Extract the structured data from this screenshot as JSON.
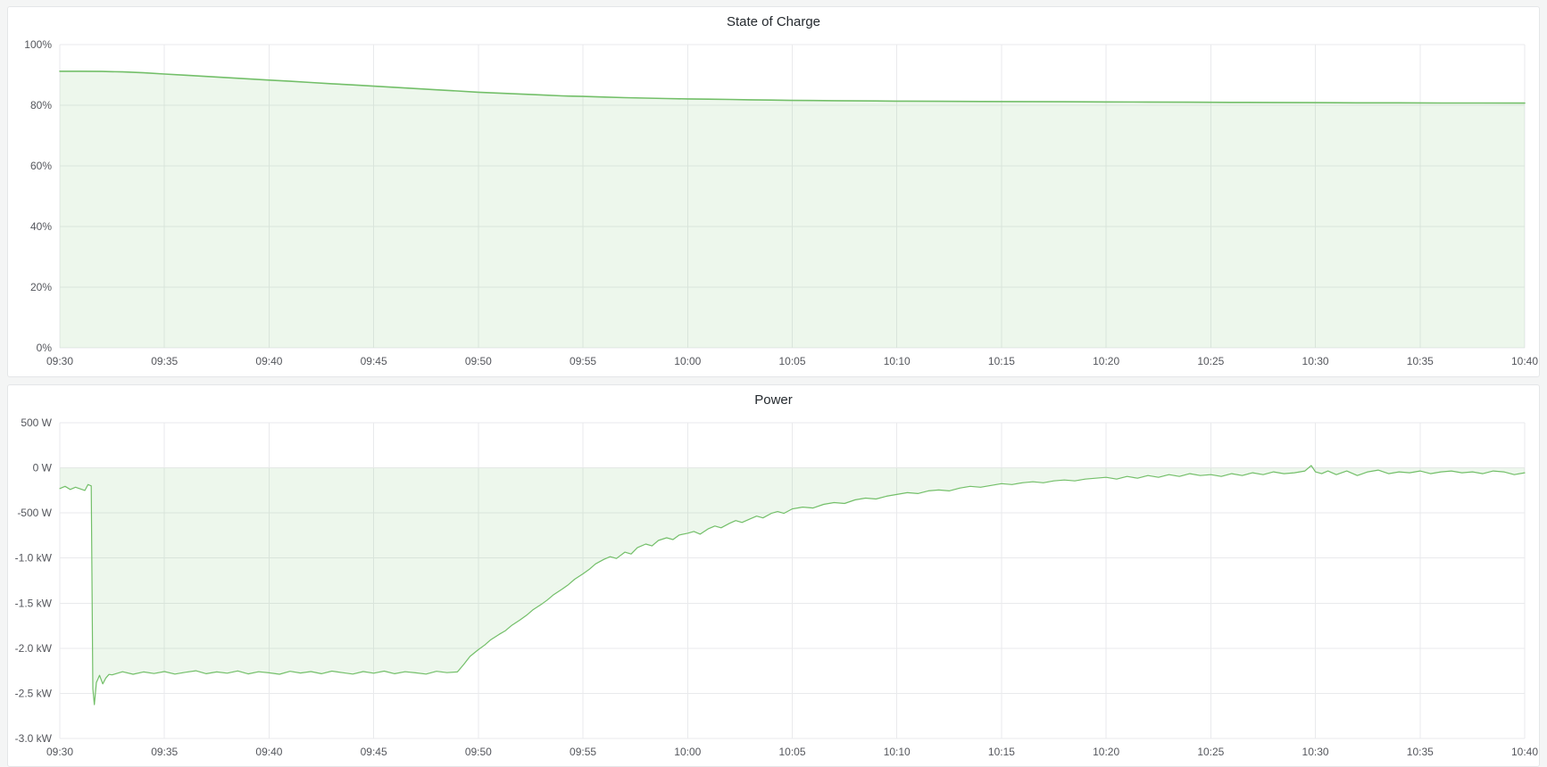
{
  "page": {
    "background": "#f4f5f5",
    "panel_background": "#ffffff"
  },
  "chart_data": [
    {
      "type": "area",
      "title": "State of Charge",
      "xlabel": "",
      "ylabel": "",
      "grid": true,
      "legend": "none",
      "xlim": [
        0,
        70
      ],
      "ylim": [
        0,
        100
      ],
      "x_ticks": [
        {
          "m": 0,
          "label": "09:30"
        },
        {
          "m": 5,
          "label": "09:35"
        },
        {
          "m": 10,
          "label": "09:40"
        },
        {
          "m": 15,
          "label": "09:45"
        },
        {
          "m": 20,
          "label": "09:50"
        },
        {
          "m": 25,
          "label": "09:55"
        },
        {
          "m": 30,
          "label": "10:00"
        },
        {
          "m": 35,
          "label": "10:05"
        },
        {
          "m": 40,
          "label": "10:10"
        },
        {
          "m": 45,
          "label": "10:15"
        },
        {
          "m": 50,
          "label": "10:20"
        },
        {
          "m": 55,
          "label": "10:25"
        },
        {
          "m": 60,
          "label": "10:30"
        },
        {
          "m": 65,
          "label": "10:35"
        },
        {
          "m": 70,
          "label": "10:40"
        }
      ],
      "y_ticks": [
        {
          "v": 100,
          "label": "100%"
        },
        {
          "v": 80,
          "label": "80%"
        },
        {
          "v": 60,
          "label": "60%"
        },
        {
          "v": 40,
          "label": "40%"
        },
        {
          "v": 20,
          "label": "20%"
        },
        {
          "v": 0,
          "label": "0%"
        }
      ],
      "series": [
        {
          "name": "State of Charge",
          "unit": "%",
          "color": "#73bf69",
          "fill": "rgba(115,191,105,0.13)",
          "line_width": 1.6,
          "points": [
            [
              0,
              91.2
            ],
            [
              1,
              91.2
            ],
            [
              2,
              91.15
            ],
            [
              3,
              91.0
            ],
            [
              4,
              90.7
            ],
            [
              5,
              90.3
            ],
            [
              6,
              89.9
            ],
            [
              7,
              89.5
            ],
            [
              8,
              89.1
            ],
            [
              9,
              88.7
            ],
            [
              10,
              88.3
            ],
            [
              11,
              87.9
            ],
            [
              12,
              87.5
            ],
            [
              13,
              87.1
            ],
            [
              14,
              86.7
            ],
            [
              15,
              86.3
            ],
            [
              16,
              85.9
            ],
            [
              17,
              85.5
            ],
            [
              18,
              85.1
            ],
            [
              19,
              84.7
            ],
            [
              20,
              84.3
            ],
            [
              21,
              84.0
            ],
            [
              22,
              83.7
            ],
            [
              23,
              83.4
            ],
            [
              24,
              83.1
            ],
            [
              25,
              82.9
            ],
            [
              26,
              82.7
            ],
            [
              27,
              82.5
            ],
            [
              28,
              82.35
            ],
            [
              29,
              82.2
            ],
            [
              30,
              82.1
            ],
            [
              31,
              82.0
            ],
            [
              32,
              81.9
            ],
            [
              33,
              81.8
            ],
            [
              34,
              81.7
            ],
            [
              35,
              81.6
            ],
            [
              36,
              81.55
            ],
            [
              37,
              81.5
            ],
            [
              38,
              81.45
            ],
            [
              39,
              81.4
            ],
            [
              40,
              81.35
            ],
            [
              42,
              81.3
            ],
            [
              44,
              81.25
            ],
            [
              46,
              81.2
            ],
            [
              48,
              81.15
            ],
            [
              50,
              81.1
            ],
            [
              52,
              81.05
            ],
            [
              54,
              81.0
            ],
            [
              56,
              80.95
            ],
            [
              58,
              80.9
            ],
            [
              60,
              80.85
            ],
            [
              62,
              80.8
            ],
            [
              64,
              80.8
            ],
            [
              66,
              80.75
            ],
            [
              68,
              80.75
            ],
            [
              70,
              80.7
            ]
          ]
        }
      ]
    },
    {
      "type": "area",
      "title": "Power",
      "xlabel": "",
      "ylabel": "",
      "grid": true,
      "legend": "none",
      "xlim": [
        0,
        70
      ],
      "ylim": [
        -3000,
        500
      ],
      "x_ticks": [
        {
          "m": 0,
          "label": "09:30"
        },
        {
          "m": 5,
          "label": "09:35"
        },
        {
          "m": 10,
          "label": "09:40"
        },
        {
          "m": 15,
          "label": "09:45"
        },
        {
          "m": 20,
          "label": "09:50"
        },
        {
          "m": 25,
          "label": "09:55"
        },
        {
          "m": 30,
          "label": "10:00"
        },
        {
          "m": 35,
          "label": "10:05"
        },
        {
          "m": 40,
          "label": "10:10"
        },
        {
          "m": 45,
          "label": "10:15"
        },
        {
          "m": 50,
          "label": "10:20"
        },
        {
          "m": 55,
          "label": "10:25"
        },
        {
          "m": 60,
          "label": "10:30"
        },
        {
          "m": 65,
          "label": "10:35"
        },
        {
          "m": 70,
          "label": "10:40"
        }
      ],
      "y_ticks": [
        {
          "v": 500,
          "label": "500 W"
        },
        {
          "v": 0,
          "label": "0 W"
        },
        {
          "v": -500,
          "label": "-500 W"
        },
        {
          "v": -1000,
          "label": "-1.0 kW"
        },
        {
          "v": -1500,
          "label": "-1.5 kW"
        },
        {
          "v": -2000,
          "label": "-2.0 kW"
        },
        {
          "v": -2500,
          "label": "-2.5 kW"
        },
        {
          "v": -3000,
          "label": "-3.0 kW"
        }
      ],
      "series": [
        {
          "name": "Power",
          "unit": "W",
          "color": "#73bf69",
          "fill": "rgba(115,191,105,0.13)",
          "line_width": 1.2,
          "points": [
            [
              0,
              -230
            ],
            [
              0.25,
              -205
            ],
            [
              0.5,
              -240
            ],
            [
              0.75,
              -215
            ],
            [
              1,
              -235
            ],
            [
              1.2,
              -250
            ],
            [
              1.35,
              -185
            ],
            [
              1.5,
              -200
            ],
            [
              1.58,
              -2450
            ],
            [
              1.65,
              -2625
            ],
            [
              1.75,
              -2380
            ],
            [
              1.9,
              -2300
            ],
            [
              2.05,
              -2395
            ],
            [
              2.2,
              -2330
            ],
            [
              2.35,
              -2290
            ],
            [
              2.5,
              -2295
            ],
            [
              3,
              -2260
            ],
            [
              3.5,
              -2288
            ],
            [
              4,
              -2262
            ],
            [
              4.5,
              -2280
            ],
            [
              5,
              -2258
            ],
            [
              5.5,
              -2286
            ],
            [
              6,
              -2266
            ],
            [
              6.5,
              -2250
            ],
            [
              7,
              -2282
            ],
            [
              7.5,
              -2262
            ],
            [
              8,
              -2276
            ],
            [
              8.5,
              -2252
            ],
            [
              9,
              -2284
            ],
            [
              9.5,
              -2260
            ],
            [
              10,
              -2272
            ],
            [
              10.5,
              -2288
            ],
            [
              11,
              -2256
            ],
            [
              11.5,
              -2274
            ],
            [
              12,
              -2258
            ],
            [
              12.5,
              -2282
            ],
            [
              13,
              -2254
            ],
            [
              13.5,
              -2270
            ],
            [
              14,
              -2286
            ],
            [
              14.5,
              -2258
            ],
            [
              15,
              -2276
            ],
            [
              15.5,
              -2254
            ],
            [
              16,
              -2282
            ],
            [
              16.5,
              -2260
            ],
            [
              17,
              -2272
            ],
            [
              17.5,
              -2286
            ],
            [
              18,
              -2256
            ],
            [
              18.5,
              -2270
            ],
            [
              19,
              -2262
            ],
            [
              19.3,
              -2180
            ],
            [
              19.6,
              -2090
            ],
            [
              20,
              -2015
            ],
            [
              20.3,
              -1965
            ],
            [
              20.6,
              -1905
            ],
            [
              21,
              -1845
            ],
            [
              21.3,
              -1805
            ],
            [
              21.6,
              -1745
            ],
            [
              22,
              -1685
            ],
            [
              22.3,
              -1635
            ],
            [
              22.6,
              -1575
            ],
            [
              23,
              -1515
            ],
            [
              23.3,
              -1465
            ],
            [
              23.6,
              -1405
            ],
            [
              24,
              -1345
            ],
            [
              24.3,
              -1295
            ],
            [
              24.6,
              -1235
            ],
            [
              25,
              -1175
            ],
            [
              25.3,
              -1125
            ],
            [
              25.6,
              -1065
            ],
            [
              26,
              -1015
            ],
            [
              26.3,
              -985
            ],
            [
              26.6,
              -1005
            ],
            [
              27,
              -935
            ],
            [
              27.3,
              -955
            ],
            [
              27.6,
              -885
            ],
            [
              28,
              -845
            ],
            [
              28.3,
              -865
            ],
            [
              28.6,
              -805
            ],
            [
              29,
              -775
            ],
            [
              29.3,
              -795
            ],
            [
              29.6,
              -745
            ],
            [
              30,
              -725
            ],
            [
              30.3,
              -705
            ],
            [
              30.6,
              -735
            ],
            [
              31,
              -675
            ],
            [
              31.3,
              -645
            ],
            [
              31.6,
              -665
            ],
            [
              32,
              -615
            ],
            [
              32.3,
              -585
            ],
            [
              32.6,
              -605
            ],
            [
              33,
              -565
            ],
            [
              33.3,
              -535
            ],
            [
              33.6,
              -555
            ],
            [
              34,
              -505
            ],
            [
              34.3,
              -485
            ],
            [
              34.6,
              -505
            ],
            [
              35,
              -455
            ],
            [
              35.5,
              -435
            ],
            [
              36,
              -445
            ],
            [
              36.5,
              -405
            ],
            [
              37,
              -385
            ],
            [
              37.5,
              -395
            ],
            [
              38,
              -355
            ],
            [
              38.5,
              -335
            ],
            [
              39,
              -345
            ],
            [
              39.5,
              -315
            ],
            [
              40,
              -295
            ],
            [
              40.5,
              -275
            ],
            [
              41,
              -285
            ],
            [
              41.5,
              -255
            ],
            [
              42,
              -245
            ],
            [
              42.5,
              -255
            ],
            [
              43,
              -225
            ],
            [
              43.5,
              -205
            ],
            [
              44,
              -215
            ],
            [
              44.5,
              -195
            ],
            [
              45,
              -175
            ],
            [
              45.5,
              -185
            ],
            [
              46,
              -165
            ],
            [
              46.5,
              -155
            ],
            [
              47,
              -165
            ],
            [
              47.5,
              -145
            ],
            [
              48,
              -135
            ],
            [
              48.5,
              -145
            ],
            [
              49,
              -125
            ],
            [
              49.5,
              -115
            ],
            [
              50,
              -105
            ],
            [
              50.5,
              -125
            ],
            [
              51,
              -95
            ],
            [
              51.5,
              -115
            ],
            [
              52,
              -85
            ],
            [
              52.5,
              -105
            ],
            [
              53,
              -75
            ],
            [
              53.5,
              -95
            ],
            [
              54,
              -65
            ],
            [
              54.5,
              -85
            ],
            [
              55,
              -75
            ],
            [
              55.5,
              -95
            ],
            [
              56,
              -65
            ],
            [
              56.5,
              -85
            ],
            [
              57,
              -55
            ],
            [
              57.5,
              -75
            ],
            [
              58,
              -45
            ],
            [
              58.5,
              -65
            ],
            [
              59,
              -55
            ],
            [
              59.5,
              -35
            ],
            [
              59.8,
              25
            ],
            [
              60,
              -45
            ],
            [
              60.3,
              -65
            ],
            [
              60.6,
              -35
            ],
            [
              61,
              -75
            ],
            [
              61.5,
              -35
            ],
            [
              62,
              -85
            ],
            [
              62.5,
              -45
            ],
            [
              63,
              -25
            ],
            [
              63.5,
              -65
            ],
            [
              64,
              -45
            ],
            [
              64.5,
              -55
            ],
            [
              65,
              -35
            ],
            [
              65.5,
              -65
            ],
            [
              66,
              -45
            ],
            [
              66.5,
              -35
            ],
            [
              67,
              -55
            ],
            [
              67.5,
              -45
            ],
            [
              68,
              -65
            ],
            [
              68.5,
              -35
            ],
            [
              69,
              -45
            ],
            [
              69.5,
              -75
            ],
            [
              70,
              -55
            ]
          ]
        }
      ]
    }
  ]
}
